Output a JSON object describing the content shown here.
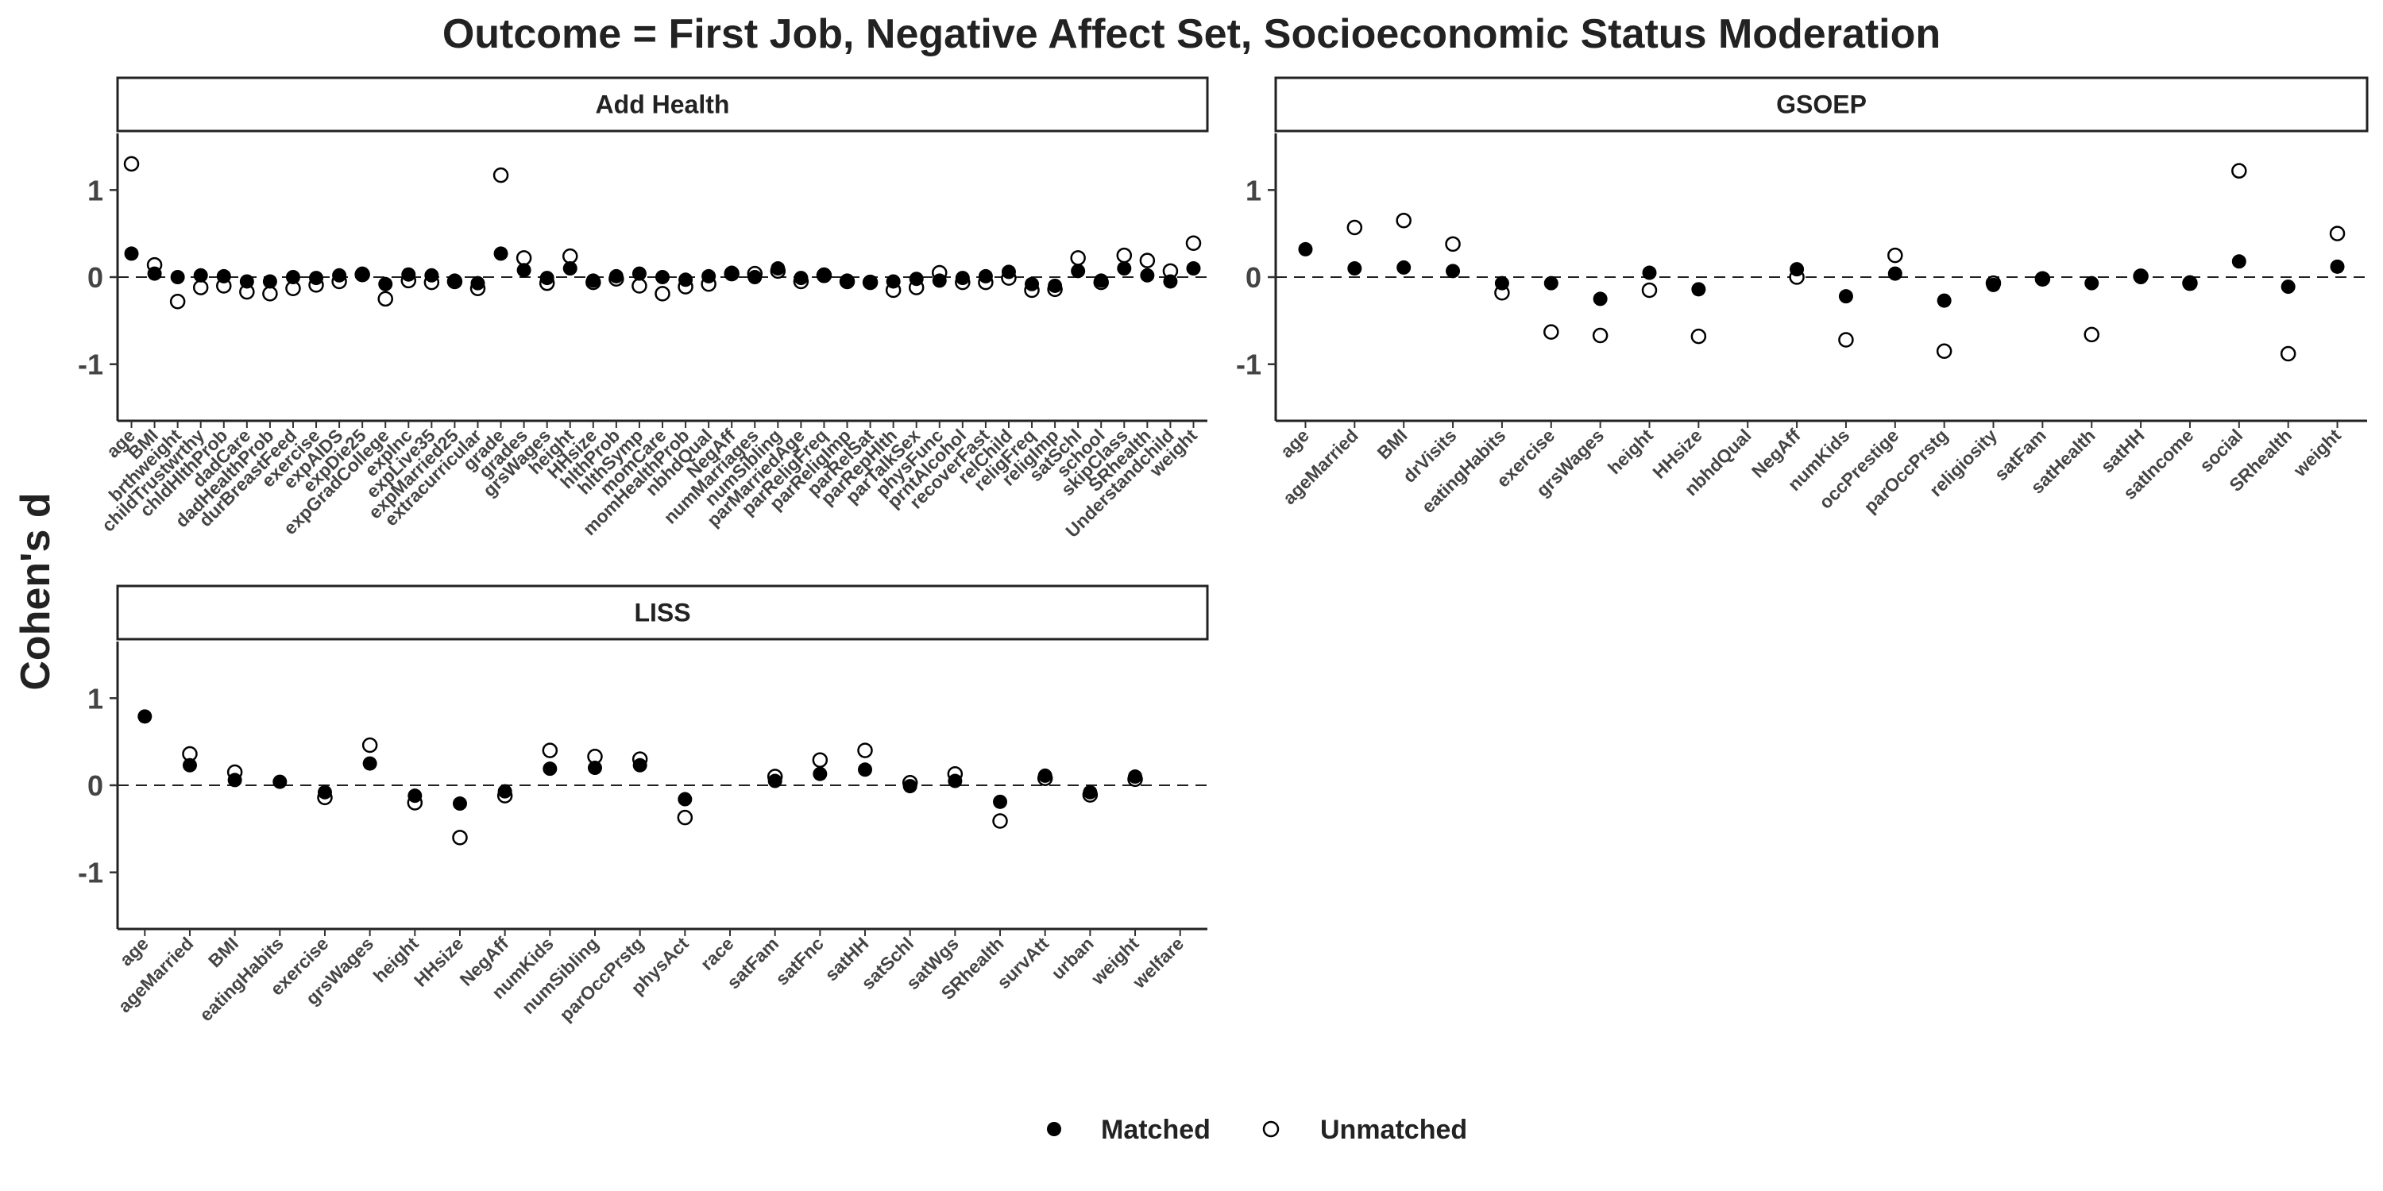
{
  "chart_data": {
    "type": "scatter",
    "title": "Outcome = First Job, Negative Affect Set, Socioeconomic Status Moderation",
    "ylabel": "Cohen's d",
    "ylim": [
      -1.65,
      1.65
    ],
    "yticks": [
      -1,
      0,
      1
    ],
    "reference_line": 0,
    "legend": {
      "position": "bottom",
      "entries": [
        {
          "label": "Matched",
          "marker": "filled-circle"
        },
        {
          "label": "Unmatched",
          "marker": "open-circle"
        }
      ]
    },
    "panels": [
      {
        "name": "Add Health",
        "categories": [
          "age",
          "BMI",
          "brthweight",
          "childTrustwrthy",
          "chldHlthProb",
          "dadCare",
          "dadHealthProb",
          "durBreastFeed",
          "exercise",
          "expAIDS",
          "expDie25",
          "expGradCollege",
          "expInc",
          "expLive35",
          "expMarried25",
          "extracurricular",
          "grade",
          "grades",
          "grsWages",
          "height",
          "HHsize",
          "hlthProb",
          "hlthSymp",
          "momCare",
          "momHealthProb",
          "nbhdQual",
          "NegAff",
          "numMarriages",
          "numSibling",
          "parMarriedAge",
          "parReligFreq",
          "parReligImp",
          "parRelSat",
          "parRepHlth",
          "parTalkSex",
          "physFunc",
          "prntAlcohol",
          "recoverFast",
          "relChild",
          "religFreq",
          "religImp",
          "satSchl",
          "school",
          "skipClass",
          "SRhealth",
          "Understandchild",
          "weight"
        ],
        "matched": [
          0.27,
          0.04,
          0.0,
          0.02,
          0.01,
          -0.05,
          -0.05,
          0.0,
          -0.01,
          0.02,
          0.04,
          -0.08,
          0.03,
          0.02,
          -0.04,
          -0.07,
          0.27,
          0.08,
          -0.01,
          0.1,
          -0.04,
          0.01,
          0.04,
          0.0,
          -0.03,
          0.01,
          0.05,
          0.0,
          0.1,
          -0.01,
          0.03,
          -0.04,
          -0.06,
          -0.05,
          -0.02,
          -0.04,
          -0.01,
          0.01,
          0.06,
          -0.08,
          -0.1,
          0.07,
          -0.04,
          0.1,
          0.02,
          -0.05,
          0.1
        ],
        "unmatched": [
          1.3,
          0.14,
          -0.28,
          -0.12,
          -0.1,
          -0.17,
          -0.19,
          -0.13,
          -0.09,
          -0.05,
          0.03,
          -0.25,
          -0.04,
          -0.06,
          -0.05,
          -0.13,
          1.17,
          0.22,
          -0.07,
          0.24,
          -0.06,
          -0.02,
          -0.1,
          -0.19,
          -0.11,
          -0.08,
          0.04,
          0.04,
          0.07,
          -0.05,
          0.02,
          -0.05,
          -0.06,
          -0.15,
          -0.12,
          0.05,
          -0.06,
          -0.06,
          -0.01,
          -0.15,
          -0.14,
          0.22,
          -0.06,
          0.25,
          0.19,
          0.07,
          0.39
        ]
      },
      {
        "name": "GSOEP",
        "categories": [
          "age",
          "ageMarried",
          "BMI",
          "drVisits",
          "eatingHabits",
          "exercise",
          "grsWages",
          "height",
          "HHsize",
          "nbhdQual",
          "NegAff",
          "numKids",
          "occPrestige",
          "parOccPrstg",
          "religiosity",
          "satFam",
          "satHealth",
          "satHH",
          "satIncome",
          "social",
          "SRhealth",
          "weight"
        ],
        "matched": [
          0.32,
          0.1,
          0.11,
          0.07,
          -0.07,
          -0.07,
          -0.25,
          0.05,
          -0.14,
          null,
          0.09,
          -0.22,
          0.04,
          -0.27,
          -0.09,
          -0.02,
          -0.07,
          0.0,
          -0.06,
          0.18,
          -0.11,
          0.12
        ],
        "unmatched": [
          null,
          0.57,
          0.65,
          0.38,
          -0.18,
          -0.63,
          -0.67,
          -0.15,
          -0.68,
          null,
          0.0,
          -0.72,
          0.25,
          -0.85,
          -0.07,
          -0.02,
          -0.66,
          0.01,
          -0.07,
          1.22,
          -0.88,
          0.5
        ]
      },
      {
        "name": "LISS",
        "categories": [
          "age",
          "ageMarried",
          "BMI",
          "eatingHabits",
          "exercise",
          "grsWages",
          "height",
          "HHsize",
          "NegAff",
          "numKids",
          "numSibling",
          "parOccPrstg",
          "physAct",
          "race",
          "satFam",
          "satFnc",
          "satHH",
          "satSchl",
          "satWgs",
          "SRhealth",
          "survAtt",
          "urban",
          "weight",
          "welfare"
        ],
        "matched": [
          0.79,
          0.23,
          0.06,
          0.04,
          -0.08,
          0.25,
          -0.12,
          -0.21,
          -0.07,
          0.19,
          0.2,
          0.23,
          -0.16,
          null,
          0.05,
          0.13,
          0.18,
          -0.01,
          0.05,
          -0.19,
          0.11,
          -0.08,
          0.1,
          null
        ],
        "unmatched": [
          null,
          0.36,
          0.15,
          null,
          -0.14,
          0.46,
          -0.2,
          -0.6,
          -0.12,
          0.4,
          0.33,
          0.3,
          -0.37,
          null,
          0.1,
          0.29,
          0.4,
          0.03,
          0.13,
          -0.41,
          0.08,
          -0.11,
          0.07,
          null
        ]
      }
    ]
  }
}
